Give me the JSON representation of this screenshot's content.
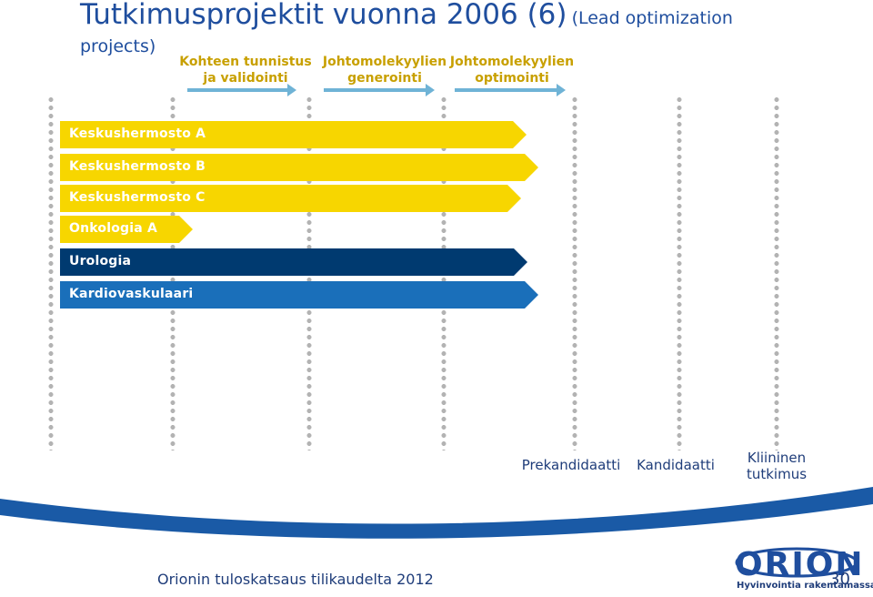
{
  "title": {
    "main": "Tutkimusprojektit vuonna 2006 (6)",
    "sub_part1": "(Lead optimization",
    "sub_part2": "projects)"
  },
  "phases": [
    {
      "line1": "Kohteen tunnistus",
      "line2": "ja validointi"
    },
    {
      "line1": "Johtomolekyylien",
      "line2": "generointi"
    },
    {
      "line1": "Johtomolekyylien",
      "line2": "optimointi"
    }
  ],
  "projects": [
    {
      "label": "Keskushermosto A",
      "color": "#f7d600",
      "text_color": "#ffffff"
    },
    {
      "label": "Keskushermosto B",
      "color": "#f7d600",
      "text_color": "#ffffff"
    },
    {
      "label": "Keskushermosto C",
      "color": "#f7d600",
      "text_color": "#ffffff"
    },
    {
      "label": "Onkologia A",
      "color": "#f7d600",
      "text_color": "#ffffff"
    },
    {
      "label": "Urologia",
      "color": "#003a70",
      "text_color": "#ffffff"
    },
    {
      "label": "Kardiovaskulaari",
      "color": "#1a6fba",
      "text_color": "#ffffff"
    }
  ],
  "stages": [
    {
      "line1": "Prekandidaatti",
      "line2": ""
    },
    {
      "line1": "Kandidaatti",
      "line2": ""
    },
    {
      "line1": "Kliininen",
      "line2": "tutkimus"
    }
  ],
  "footer": {
    "text": "Orionin tuloskatsaus tilikaudelta 2012",
    "page_number": "30"
  },
  "logo": {
    "word": "ORION",
    "tagline": "Hyvinvointia rakentamassa"
  },
  "colors": {
    "title": "#1f4e9e",
    "phase_text": "#c8a000",
    "phase_arrow": "#6fb3d6",
    "footer_band": "#1a5aa6"
  }
}
